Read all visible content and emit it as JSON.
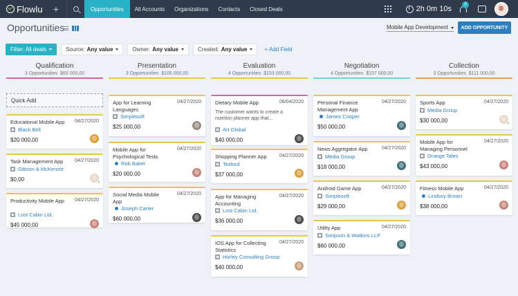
{
  "app": {
    "name": "Flowlu",
    "plus_glyph": "+"
  },
  "nav": {
    "tabs": [
      "Opportunities",
      "All Accounts",
      "Organizations",
      "Contacts",
      "Closed Deals"
    ],
    "active": "Opportunities"
  },
  "topbar": {
    "timer": "2h 0m 10s",
    "notification_count": "0"
  },
  "page": {
    "title": "Opportunities",
    "pipeline": "Mobile App Development",
    "add_button": "ADD OPPORTUNITY"
  },
  "filters": {
    "filter_label": "Filter: All deals",
    "source_label": "Source:",
    "source_value": "Any value",
    "owner_label": "Owner:",
    "owner_value": "Any value",
    "created_label": "Created:",
    "created_value": "Any value",
    "add_field": "+ Add Field"
  },
  "quick_add": "Quick Add",
  "colors": {
    "accent": "#29b1c6",
    "brand": "#2d7fc1",
    "nav_bg": "#2f3b4b"
  },
  "columns": [
    {
      "title": "Qualification",
      "count": "3 Opportunities",
      "total": "$65 000,00",
      "color": "#d9649a",
      "cards": [
        {
          "name": "Educational Mobile App",
          "date": "04/27/2020",
          "client": "Black Bell",
          "client_type": "company",
          "amount": "$20 000,00",
          "bar": "#e7c74a",
          "avatar": "#d9a03c"
        },
        {
          "name": "Task Management App",
          "date": "04/27/2020",
          "client": "Gibson & McKenzie",
          "client_type": "company",
          "amount": "$0,00",
          "bar": "#e7c74a",
          "avatar": "#e8d8c8"
        },
        {
          "name": "Productivity Mobile App",
          "date": "04/27/2020",
          "client": "Lost Cabin Ltd.",
          "client_type": "company",
          "amount": "$45 000,00",
          "bar": "#e7c74a",
          "avatar": "#c9847a"
        }
      ]
    },
    {
      "title": "Presentation",
      "count": "3 Opportunities",
      "total": "$105 000,00",
      "color": "#e7c74a",
      "cards": [
        {
          "name": "App for Learning Languages",
          "date": "04/27/2020",
          "client": "Simplesoft",
          "client_type": "company",
          "amount": "$25 000,00",
          "bar": "#e7c74a",
          "avatar": "#9a8a82"
        },
        {
          "name": "Mobile App for Psychological Tests",
          "date": "04/27/2020",
          "client": "Rob Baker",
          "client_type": "contact",
          "amount": "$20 000,00",
          "bar": "#e7c74a",
          "avatar": "#c9847a"
        },
        {
          "name": "Social Media Mobile App",
          "date": "04/27/2020",
          "client": "Joseph Carter",
          "client_type": "contact",
          "amount": "$60 000,00",
          "bar": "#e7c74a",
          "avatar": "#4a4a4a"
        }
      ]
    },
    {
      "title": "Evaluation",
      "count": "4 Opportunities",
      "total": "$153 000,00",
      "color": "#e7c74a",
      "cards": [
        {
          "name": "Dietary Mobile App",
          "date": "06/04/2020",
          "desc": "The customer wants to create a nutrition planner app that...",
          "client": "Art Global",
          "client_type": "company",
          "amount": "$40 000,00",
          "bar": "#d9649a",
          "avatar": "#4a4a4a"
        },
        {
          "name": "Shopping Planner App",
          "date": "04/27/2020",
          "client": "Texford",
          "client_type": "company",
          "amount": "$37 000,00",
          "bar": "#e7c74a",
          "avatar": "#d9a03c"
        },
        {
          "name": "App for Managing Accounting",
          "date": "04/27/2020",
          "client": "Lost Cabin Ltd.",
          "client_type": "company",
          "amount": "$36 000,00",
          "bar": "#e7c74a",
          "avatar": "#4a4a4a"
        },
        {
          "name": "IOS App for Collecting Statistics",
          "date": "04/27/2020",
          "client": "Hurley Consulting Group",
          "client_type": "company",
          "amount": "$40 000,00",
          "bar": "#e7c74a",
          "avatar": "#c9a07a"
        }
      ]
    },
    {
      "title": "Negotiation",
      "count": "4 Opportunities",
      "total": "$157 000,00",
      "color": "#6fd3d9",
      "cards": [
        {
          "name": "Personal Finance Management App",
          "date": "04/27/2020",
          "client": "James Cooper",
          "client_type": "contact",
          "amount": "$50 000,00",
          "bar": "#e7c74a",
          "avatar": "#3f6f7a"
        },
        {
          "name": "News Aggregator App",
          "date": "04/27/2020",
          "client": "Media Group",
          "client_type": "company",
          "amount": "$18 000,00",
          "bar": "#e7c74a",
          "avatar": "#3f6f7a"
        },
        {
          "name": "Android Game App",
          "date": "04/27/2020",
          "client": "Simplesoft",
          "client_type": "company",
          "amount": "$29 000,00",
          "bar": "#e7c74a",
          "avatar": "#d9a03c"
        },
        {
          "name": "Utility App",
          "date": "04/27/2020",
          "client": "Simpson & Watkins LLP",
          "client_type": "company",
          "amount": "$60 000,00",
          "bar": "#e7c74a",
          "avatar": "#3f6f7a"
        }
      ]
    },
    {
      "title": "Collection",
      "count": "3 Opportunities",
      "total": "$111 000,00",
      "color": "#f0a04a",
      "cards": [
        {
          "name": "Sports App",
          "date": "04/27/2020",
          "client": "Media Group",
          "client_type": "company",
          "amount": "$30 000,00",
          "bar": "#e7c74a",
          "avatar": "#e8d8c8"
        },
        {
          "name": "Mobile App for Managing Personnel",
          "date": "04/27/2020",
          "client": "Orange Tales",
          "client_type": "company",
          "amount": "$43 000,00",
          "bar": "#e7c74a",
          "avatar": "#c9847a"
        },
        {
          "name": "Fitness Mobile App",
          "date": "04/27/2020",
          "client": "Lindsey Brown",
          "client_type": "contact",
          "amount": "$38 000,00",
          "bar": "#e7c74a",
          "avatar": "#c9847a"
        }
      ]
    }
  ]
}
